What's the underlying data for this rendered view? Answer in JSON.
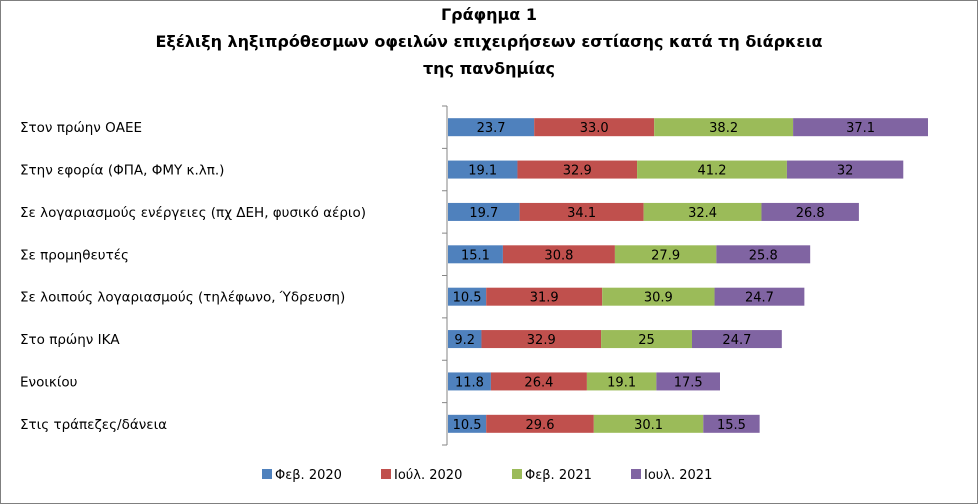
{
  "chart_data": {
    "type": "bar",
    "orientation": "horizontal",
    "stacked": true,
    "title": "Γράφημα 1",
    "subtitle": "Εξέλιξη ληξιπρόθεσμων οφειλών επιχειρήσεων εστίασης κατά τη διάρκεια της πανδημίας",
    "title_lines": [
      "Γράφημα 1",
      "Εξέλιξη ληξιπρόθεσμων οφειλών επιχειρήσεων εστίασης κατά τη διάρκεια",
      "της πανδημίας"
    ],
    "categories": [
      "Στον πρώην ΟΑΕΕ",
      "Στην εφορία (ΦΠΑ, ΦΜΥ κ.λπ.)",
      "Σε λογαριασμούς ενέργειες (πχ ΔΕΗ, φυσικό αέριο)",
      "Σε προμηθευτές",
      "Σε λοιπούς λογαριασμούς (τηλέφωνο, Ύδρευση)",
      "Στο πρώην ΙΚΑ",
      "Ενοικίου",
      "Στις τράπεζες/δάνεια"
    ],
    "series": [
      {
        "name": "Φεβ. 2020",
        "color": "#4f81bd",
        "values": [
          23.7,
          19.1,
          19.7,
          15.1,
          10.5,
          9.2,
          11.8,
          10.5
        ],
        "labels": [
          "23.7",
          "19.1",
          "19.7",
          "15.1",
          "10.5",
          "9.2",
          "11.8",
          "10.5"
        ]
      },
      {
        "name": "Ιούλ. 2020",
        "color": "#c0504d",
        "values": [
          33.0,
          32.9,
          34.1,
          30.8,
          31.9,
          32.9,
          26.4,
          29.6
        ],
        "labels": [
          "33.0",
          "32.9",
          "34.1",
          "30.8",
          "31.9",
          "32.9",
          "26.4",
          "29.6"
        ]
      },
      {
        "name": "Φεβ. 2021",
        "color": "#9bbb59",
        "values": [
          38.2,
          41.2,
          32.4,
          27.9,
          30.9,
          25,
          19.1,
          30.1
        ],
        "labels": [
          "38.2",
          "41.2",
          "32.4",
          "27.9",
          "30.9",
          "25",
          "19.1",
          "30.1"
        ]
      },
      {
        "name": "Ιουλ. 2021",
        "color": "#8064a2",
        "values": [
          37.1,
          32,
          26.8,
          25.8,
          24.7,
          24.7,
          17.5,
          15.5
        ],
        "labels": [
          "37.1",
          "32",
          "26.8",
          "25.8",
          "24.7",
          "24.7",
          "17.5",
          "15.5"
        ]
      }
    ],
    "xlim": [
      0,
      135
    ],
    "grid": false,
    "legend_position": "bottom"
  }
}
